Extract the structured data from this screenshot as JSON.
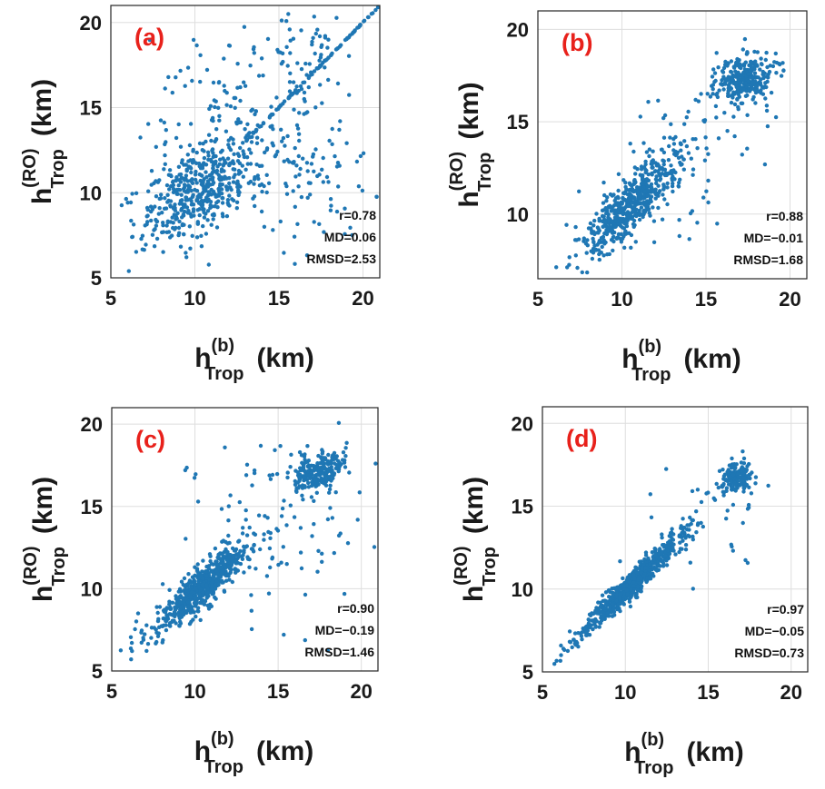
{
  "figure": {
    "colors": {
      "points": "#1f77b4",
      "panel_label": "#e8211b"
    },
    "x_label": {
      "base": "h",
      "sup": "(b)",
      "sub": "Trop",
      "unit": "(km)"
    },
    "y_label": {
      "base": "h",
      "sup": "(RO)",
      "sub": "Trop",
      "unit": "(km)"
    }
  },
  "chart_data": [
    {
      "type": "scatter",
      "panel_label": "(a)",
      "xlim": [
        5,
        21
      ],
      "ylim": [
        5,
        21
      ],
      "xticks": [
        "5",
        "10",
        "15",
        "20"
      ],
      "yticks": [
        "5",
        "10",
        "15",
        "20"
      ],
      "grid": true,
      "stats": {
        "r": "r=0.78",
        "md": "MD=0.06",
        "rmsd": "RMSD=2.53"
      },
      "clusters": [
        {
          "cx": 10,
          "cy": 10,
          "sx": 1.6,
          "sy": 1.6,
          "rho": 0.55,
          "n": 420
        },
        {
          "cx": 12.5,
          "cy": 15,
          "sx": 2.5,
          "sy": 3,
          "rho": 0,
          "n": 140
        },
        {
          "cx": 15,
          "cy": 11.5,
          "sx": 3,
          "sy": 2,
          "rho": 0,
          "n": 140
        },
        {
          "cx": 17,
          "cy": 17,
          "sx": 1.2,
          "sy": 2.2,
          "rho": 0,
          "n": 60
        }
      ],
      "diagonal": {
        "from": 13,
        "to": 21,
        "n": 90
      }
    },
    {
      "type": "scatter",
      "panel_label": "(b)",
      "xlim": [
        5,
        21
      ],
      "ylim": [
        6.5,
        21
      ],
      "xticks": [
        "5",
        "10",
        "15",
        "20"
      ],
      "yticks": [
        "10",
        "15",
        "20"
      ],
      "grid": true,
      "stats": {
        "r": "r=0.88",
        "md": "MD=−0.01",
        "rmsd": "RMSD=1.68"
      },
      "clusters": [
        {
          "cx": 10.5,
          "cy": 10.5,
          "sx": 1.5,
          "sy": 1.5,
          "rho": 0.85,
          "n": 520
        },
        {
          "cx": 17.3,
          "cy": 17.3,
          "sx": 0.9,
          "sy": 0.7,
          "rho": 0.3,
          "n": 300
        },
        {
          "cx": 13,
          "cy": 12.5,
          "sx": 2.5,
          "sy": 2.5,
          "rho": 0.2,
          "n": 90
        }
      ]
    },
    {
      "type": "scatter",
      "panel_label": "(c)",
      "xlim": [
        5,
        21
      ],
      "ylim": [
        5,
        21
      ],
      "xticks": [
        "5",
        "10",
        "15",
        "20"
      ],
      "yticks": [
        "5",
        "10",
        "15",
        "20"
      ],
      "grid": true,
      "stats": {
        "r": "r=0.90",
        "md": "MD=−0.19",
        "rmsd": "RMSD=1.46"
      },
      "clusters": [
        {
          "cx": 10.5,
          "cy": 10.2,
          "sx": 1.5,
          "sy": 1.4,
          "rho": 0.9,
          "n": 650
        },
        {
          "cx": 17.3,
          "cy": 17.2,
          "sx": 0.8,
          "sy": 0.6,
          "rho": 0.3,
          "n": 240
        },
        {
          "cx": 14.5,
          "cy": 14,
          "sx": 2.6,
          "sy": 2.8,
          "rho": 0,
          "n": 90
        }
      ]
    },
    {
      "type": "scatter",
      "panel_label": "(d)",
      "xlim": [
        5,
        21
      ],
      "ylim": [
        5,
        21
      ],
      "xticks": [
        "5",
        "10",
        "15",
        "20"
      ],
      "yticks": [
        "5",
        "10",
        "15",
        "20"
      ],
      "grid": true,
      "stats": {
        "r": "r=0.97",
        "md": "MD=−0.05",
        "rmsd": "RMSD=0.73"
      },
      "clusters": [
        {
          "cx": 10.4,
          "cy": 10.3,
          "sx": 1.6,
          "sy": 1.6,
          "rho": 0.97,
          "n": 700
        },
        {
          "cx": 16.6,
          "cy": 16.7,
          "sx": 0.45,
          "sy": 0.45,
          "rho": 0.3,
          "n": 150
        },
        {
          "cx": 14.5,
          "cy": 14,
          "sx": 1.8,
          "sy": 2,
          "rho": 0.2,
          "n": 40
        }
      ]
    }
  ]
}
